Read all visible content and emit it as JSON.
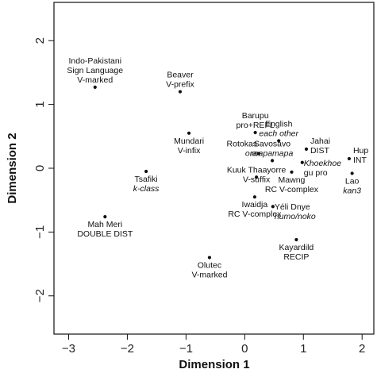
{
  "chart_data": {
    "type": "scatter",
    "xlabel": "Dimension 1",
    "ylabel": "Dimension 2",
    "xlim": [
      -3.25,
      2.2
    ],
    "ylim": [
      -2.6,
      2.6
    ],
    "x_ticks": [
      -3,
      -2,
      -1,
      0,
      1,
      2
    ],
    "y_ticks": [
      -2,
      -1,
      0,
      1,
      2
    ],
    "grid": false,
    "points": [
      {
        "x": -2.55,
        "y": 1.27,
        "lines": [
          "Indo-Pakistani",
          "Sign Language",
          "V-marked"
        ],
        "italic": [],
        "anchor": "middle",
        "pos": "above"
      },
      {
        "x": -1.1,
        "y": 1.2,
        "lines": [
          "Beaver",
          "V-prefix"
        ],
        "italic": [],
        "anchor": "middle",
        "pos": "above"
      },
      {
        "x": -0.95,
        "y": 0.55,
        "lines": [
          "Mundari",
          "V-infix"
        ],
        "italic": [],
        "anchor": "middle",
        "pos": "below"
      },
      {
        "x": -1.68,
        "y": -0.05,
        "lines": [
          "Tsafiki",
          "k-class"
        ],
        "italic": [
          1
        ],
        "anchor": "middle",
        "pos": "below"
      },
      {
        "x": -2.38,
        "y": -0.76,
        "lines": [
          "Mah Meri",
          "DOUBLE DIST"
        ],
        "italic": [],
        "anchor": "middle",
        "pos": "below"
      },
      {
        "x": 0.18,
        "y": 0.56,
        "lines": [
          "Barupu",
          "pro+REFL"
        ],
        "italic": [],
        "anchor": "middle",
        "pos": "above"
      },
      {
        "x": 0.58,
        "y": 0.43,
        "lines": [
          "English",
          "each other"
        ],
        "italic": [
          1
        ],
        "anchor": "middle",
        "pos": "above"
      },
      {
        "x": 0.24,
        "y": 0.23,
        "lines": [
          "Rotokas",
          "ora"
        ],
        "italic": [
          1
        ],
        "anchor": "end",
        "pos": "left"
      },
      {
        "x": 0.47,
        "y": 0.12,
        "lines": [
          "Savosavo",
          "mapamapa"
        ],
        "italic": [
          1
        ],
        "anchor": "middle",
        "pos": "above"
      },
      {
        "x": 1.05,
        "y": 0.3,
        "lines": [
          "Jahai",
          "DIST"
        ],
        "italic": [],
        "anchor": "start",
        "pos": "right"
      },
      {
        "x": 0.98,
        "y": 0.09,
        "lines": [
          "Khoekhoe",
          "gu pro"
        ],
        "italic": [
          0
        ],
        "anchor": "start",
        "pos": "right-low"
      },
      {
        "x": 1.78,
        "y": 0.15,
        "lines": [
          "Hup",
          "INT"
        ],
        "italic": [],
        "anchor": "start",
        "pos": "right"
      },
      {
        "x": 1.83,
        "y": -0.08,
        "lines": [
          "Lao",
          "kan3"
        ],
        "italic": [
          1
        ],
        "anchor": "middle",
        "pos": "below"
      },
      {
        "x": 0.2,
        "y": -0.14,
        "lines": [
          "Kuuk Thaayorre",
          "V-suffix"
        ],
        "italic": [],
        "anchor": "middle",
        "pos": "around"
      },
      {
        "x": 0.8,
        "y": -0.06,
        "lines": [
          "Mawng",
          "RC V-complex"
        ],
        "italic": [],
        "anchor": "middle",
        "pos": "below"
      },
      {
        "x": 0.17,
        "y": -0.45,
        "lines": [
          "Iwaidja",
          "RC V-complex"
        ],
        "italic": [],
        "anchor": "middle",
        "pos": "below"
      },
      {
        "x": 0.48,
        "y": -0.6,
        "lines": [
          "Yéli Dnye",
          "numo/noko"
        ],
        "italic": [
          1
        ],
        "anchor": "start",
        "pos": "right-low"
      },
      {
        "x": 0.88,
        "y": -1.12,
        "lines": [
          "Kayardild",
          "RECIP"
        ],
        "italic": [],
        "anchor": "middle",
        "pos": "below"
      },
      {
        "x": -0.6,
        "y": -1.4,
        "lines": [
          "Olutec",
          "V-marked"
        ],
        "italic": [],
        "anchor": "middle",
        "pos": "below"
      }
    ]
  }
}
